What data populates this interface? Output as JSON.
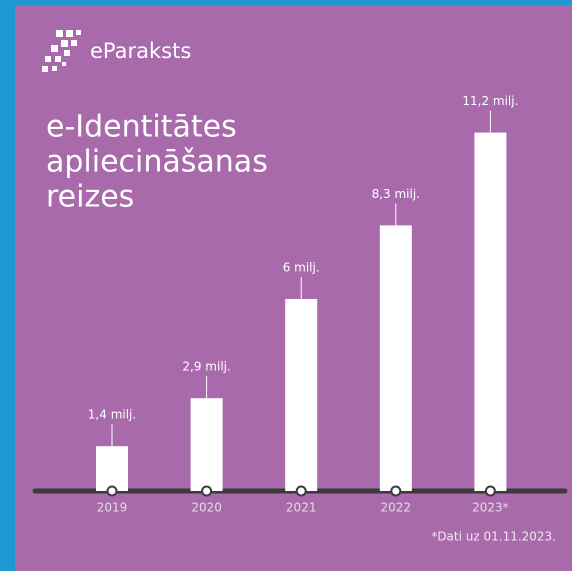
{
  "brand": "eParaksts",
  "chart_data": {
    "type": "bar",
    "title": [
      "e-Identitātes",
      "apliecināšanas",
      "reizes"
    ],
    "categories": [
      "2019",
      "2020",
      "2021",
      "2022",
      "2023*"
    ],
    "values": [
      1.4,
      2.9,
      6,
      8.3,
      11.2
    ],
    "value_labels": [
      "1,4 milj.",
      "2,9 milj.",
      "6 milj.",
      "8,3 milj.",
      "11,2 milj."
    ],
    "color": "#ffffff",
    "note": "*Dati uz 01.11.2023."
  }
}
